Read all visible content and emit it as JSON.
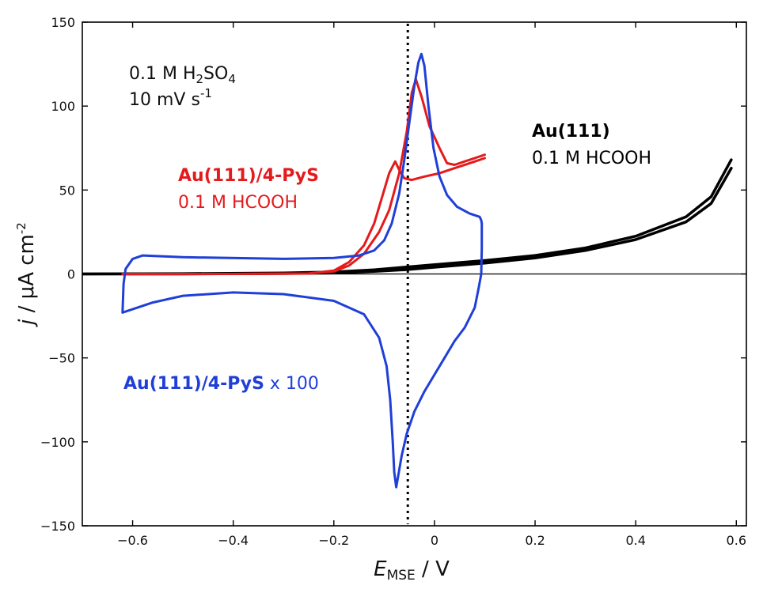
{
  "chart_data": {
    "type": "line",
    "xlabel_main": "E",
    "xlabel_sub": "MSE",
    "xlabel_unit": " / V",
    "ylabel_main": "j",
    "ylabel_unit": " / μA cm",
    "ylabel_sup": "-2",
    "xlim": [
      -0.7,
      0.62
    ],
    "ylim": [
      -150,
      150
    ],
    "xticks": [
      -0.6,
      -0.4,
      -0.2,
      0,
      0.2,
      0.4,
      0.6
    ],
    "xtick_labels": [
      "−0.6",
      "−0.4",
      "−0.2",
      "0",
      "0.2",
      "0.4",
      "0.6"
    ],
    "yticks": [
      -150,
      -100,
      -50,
      0,
      50,
      100,
      150
    ],
    "ytick_labels": [
      "−150",
      "−100",
      "−50",
      "0",
      "50",
      "100",
      "150"
    ],
    "vline_x": -0.053,
    "annotations": {
      "conditions": {
        "l1_pre": "0.1 M H",
        "l1_sub1": "2",
        "l1_mid": "SO",
        "l1_sub2": "4",
        "l2_pre": "10 mV s",
        "l2_sup": "-1"
      },
      "au111": {
        "bold": "Au(111)",
        "line2": "0.1 M HCOOH"
      },
      "pys": {
        "bold": "Au(111)/4-PyS",
        "line2": "0.1 M HCOOH"
      },
      "pys100": {
        "bold": "Au(111)/4-PyS",
        "rest": " x 100"
      }
    },
    "series": [
      {
        "color": "#000000",
        "forward": [
          [
            -0.7,
            0
          ],
          [
            -0.5,
            0.2
          ],
          [
            -0.3,
            0.6
          ],
          [
            -0.2,
            1.2
          ],
          [
            -0.12,
            2.5
          ],
          [
            -0.06,
            4
          ],
          [
            0,
            5.5
          ],
          [
            0.1,
            8
          ],
          [
            0.2,
            11
          ],
          [
            0.3,
            15.5
          ],
          [
            0.4,
            22.5
          ],
          [
            0.5,
            34
          ],
          [
            0.55,
            46
          ],
          [
            0.59,
            68
          ]
        ],
        "reverse": [
          [
            0.59,
            63
          ],
          [
            0.55,
            42
          ],
          [
            0.5,
            31
          ],
          [
            0.4,
            20.5
          ],
          [
            0.3,
            14
          ],
          [
            0.2,
            9.5
          ],
          [
            0.1,
            6.5
          ],
          [
            0,
            4
          ],
          [
            -0.06,
            2.5
          ],
          [
            -0.12,
            1.5
          ],
          [
            -0.2,
            0.6
          ],
          [
            -0.3,
            0.3
          ],
          [
            -0.5,
            0
          ],
          [
            -0.7,
            0
          ]
        ]
      },
      {
        "color": "#e41a1c",
        "forward": [
          [
            -0.62,
            0
          ],
          [
            -0.4,
            0
          ],
          [
            -0.25,
            0.3
          ],
          [
            -0.2,
            1.5
          ],
          [
            -0.17,
            5
          ],
          [
            -0.14,
            12
          ],
          [
            -0.11,
            25
          ],
          [
            -0.09,
            38
          ],
          [
            -0.07,
            60
          ],
          [
            -0.055,
            85
          ],
          [
            -0.045,
            108
          ],
          [
            -0.037,
            116
          ],
          [
            -0.025,
            105
          ],
          [
            -0.01,
            88
          ],
          [
            0.01,
            75
          ],
          [
            0.025,
            66
          ],
          [
            0.04,
            65
          ],
          [
            0.06,
            67
          ],
          [
            0.08,
            69
          ],
          [
            0.1,
            71
          ]
        ],
        "reverse": [
          [
            0.1,
            69
          ],
          [
            0.07,
            66
          ],
          [
            0.04,
            63
          ],
          [
            0.01,
            60
          ],
          [
            -0.02,
            58
          ],
          [
            -0.045,
            56
          ],
          [
            -0.06,
            57
          ],
          [
            -0.07,
            62
          ],
          [
            -0.078,
            67
          ],
          [
            -0.09,
            60
          ],
          [
            -0.1,
            50
          ],
          [
            -0.12,
            30
          ],
          [
            -0.14,
            17
          ],
          [
            -0.17,
            7
          ],
          [
            -0.2,
            2
          ],
          [
            -0.25,
            0.3
          ],
          [
            -0.4,
            0
          ],
          [
            -0.62,
            0
          ]
        ]
      },
      {
        "color": "#1f3fd8",
        "forward": [
          [
            -0.62,
            -23
          ],
          [
            -0.618,
            -6
          ],
          [
            -0.614,
            3
          ],
          [
            -0.6,
            9
          ],
          [
            -0.58,
            11
          ],
          [
            -0.5,
            10
          ],
          [
            -0.3,
            9
          ],
          [
            -0.2,
            9.5
          ],
          [
            -0.15,
            11
          ],
          [
            -0.12,
            14
          ],
          [
            -0.1,
            20
          ],
          [
            -0.085,
            30
          ],
          [
            -0.07,
            48
          ],
          [
            -0.06,
            68
          ],
          [
            -0.05,
            90
          ],
          [
            -0.04,
            112
          ],
          [
            -0.032,
            126
          ],
          [
            -0.026,
            131
          ],
          [
            -0.02,
            124
          ],
          [
            -0.012,
            100
          ],
          [
            -0.002,
            75
          ],
          [
            0.01,
            58
          ],
          [
            0.025,
            47
          ],
          [
            0.045,
            40
          ],
          [
            0.07,
            36
          ],
          [
            0.08,
            35
          ],
          [
            0.09,
            34
          ],
          [
            0.093,
            32
          ],
          [
            0.094,
            30
          ],
          [
            0.094,
            15
          ],
          [
            0.093,
            0
          ],
          [
            0.088,
            -8
          ],
          [
            0.08,
            -20
          ],
          [
            0.06,
            -32
          ],
          [
            0.04,
            -40
          ],
          [
            0.02,
            -50
          ],
          [
            0,
            -60
          ],
          [
            -0.02,
            -70
          ],
          [
            -0.04,
            -82
          ],
          [
            -0.055,
            -95
          ],
          [
            -0.065,
            -108
          ],
          [
            -0.072,
            -120
          ],
          [
            -0.076,
            -127
          ],
          [
            -0.08,
            -118
          ],
          [
            -0.083,
            -100
          ],
          [
            -0.088,
            -75
          ],
          [
            -0.095,
            -55
          ],
          [
            -0.11,
            -38
          ],
          [
            -0.14,
            -24
          ],
          [
            -0.2,
            -16
          ],
          [
            -0.3,
            -12
          ],
          [
            -0.4,
            -11
          ],
          [
            -0.5,
            -13
          ],
          [
            -0.56,
            -17
          ],
          [
            -0.6,
            -21
          ],
          [
            -0.62,
            -23
          ]
        ]
      }
    ]
  }
}
